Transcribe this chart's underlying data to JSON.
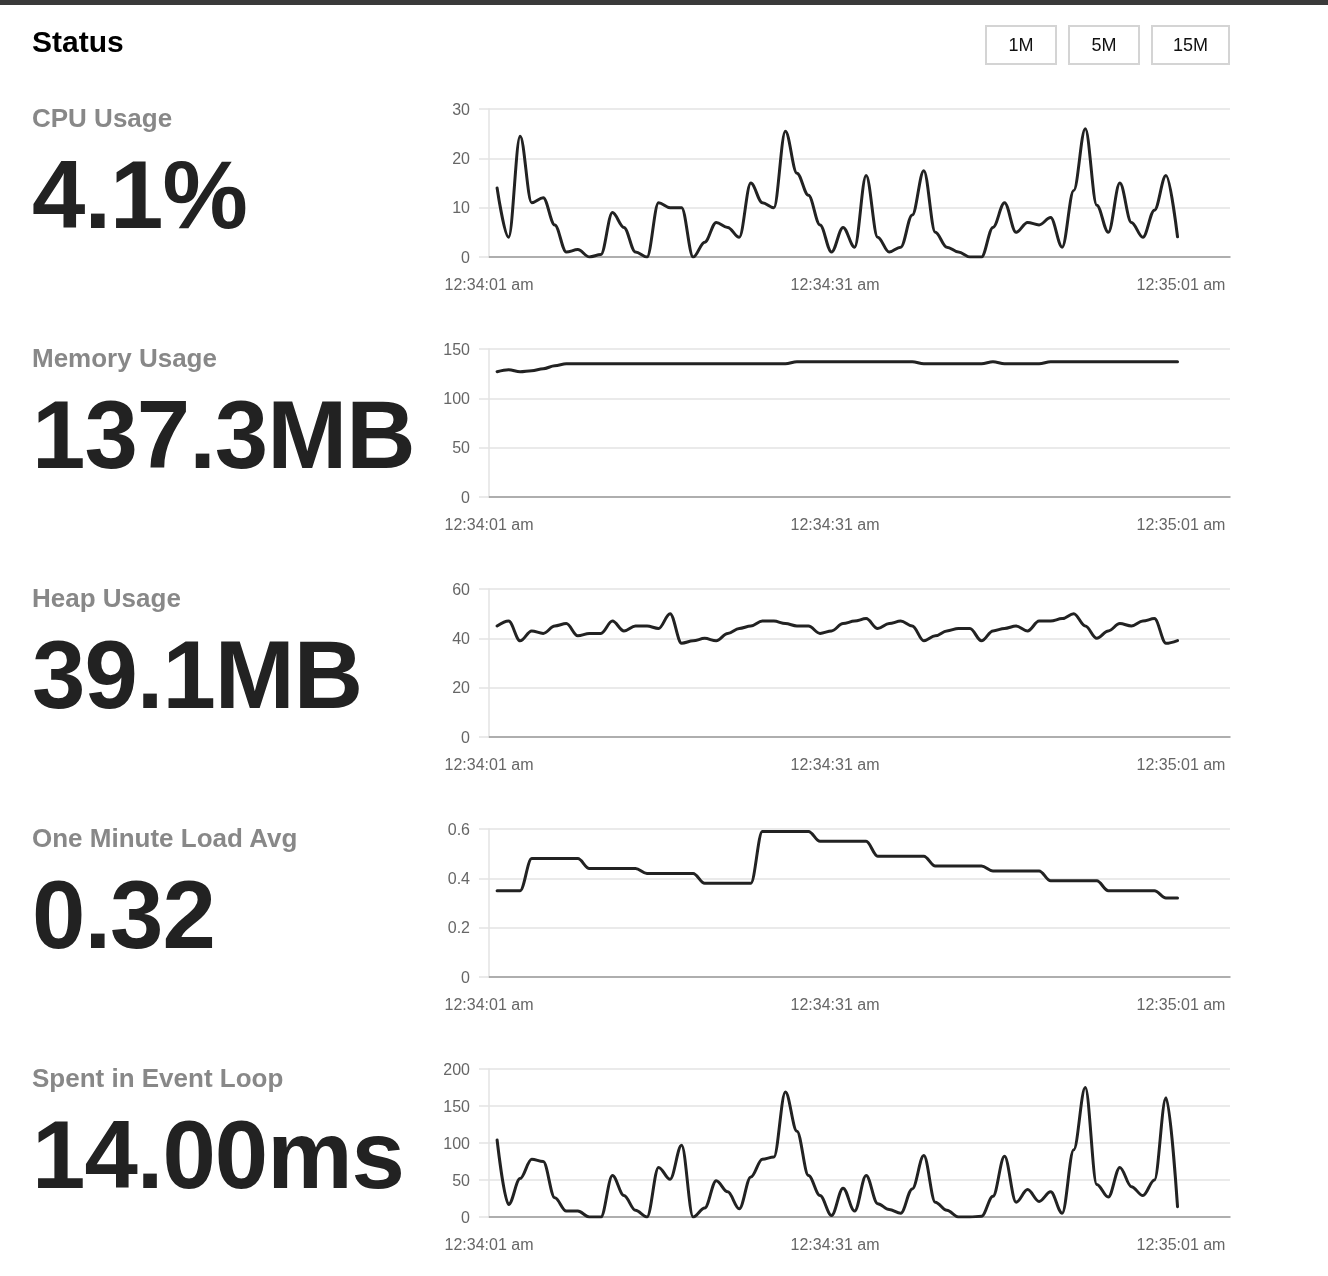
{
  "chart_data": [
    {
      "type": "other",
      "title": "Status",
      "annotations": [
        "1M",
        "5M",
        "15M"
      ]
    },
    {
      "type": "other",
      "title": "CPU Usage",
      "subtitle": "4.1%"
    },
    {
      "type": "line",
      "color": "#222222",
      "marker": "none",
      "grid": "y",
      "x": [
        0.567139,
        0.567417,
        0.567694,
        0.567972,
        0.56825,
        0.568528,
        0.568806,
        0.569083,
        0.569361,
        0.569639,
        0.569917,
        0.570194,
        0.570472,
        0.57075,
        0.571028,
        0.571306,
        0.571583,
        0.571861,
        0.572139,
        0.572417,
        0.572694,
        0.572972,
        0.57325,
        0.573528,
        0.573806,
        0.574083,
        0.574361,
        0.574639,
        0.574917,
        0.575194,
        0.575472,
        0.57575,
        0.576028,
        0.576306,
        0.576583,
        0.576861,
        0.577139,
        0.577417,
        0.577694,
        0.577972,
        0.57825,
        0.578528,
        0.578806,
        0.579083,
        0.579361,
        0.579639,
        0.579917,
        0.580194,
        0.580472,
        0.58075,
        0.581028,
        0.581306,
        0.581583,
        0.581861,
        0.582139,
        0.582417,
        0.582694,
        0.582972,
        0.58325,
        0.583528
      ],
      "values": [
        14,
        4,
        24.5,
        11,
        12,
        6.5,
        1,
        1.5,
        0,
        0.5,
        9,
        6,
        1,
        0,
        11,
        10,
        10,
        0,
        3,
        7,
        6,
        4,
        15,
        11,
        10,
        25.5,
        17,
        12.5,
        6.5,
        1,
        6,
        2,
        16.5,
        4,
        1,
        2,
        8.5,
        17.5,
        5,
        2,
        1,
        0,
        0,
        6,
        11,
        5,
        7,
        6.5,
        8,
        2,
        13.5,
        26,
        10.5,
        5,
        15,
        7,
        4,
        9.5,
        16.5,
        4.1
      ],
      "xlim": [
        0.566944,
        0.584792
      ],
      "xticks": [
        {
          "value": 0.566944,
          "label": "12:34:01 am"
        },
        {
          "value": 0.575278,
          "label": "12:34:31 am"
        },
        {
          "value": 0.583611,
          "label": "12:35:01 am"
        }
      ],
      "ylim": [
        0,
        30
      ],
      "yticks": [
        0,
        10,
        20,
        30
      ]
    },
    {
      "type": "other",
      "title": "Memory Usage",
      "subtitle": "137.3MB"
    },
    {
      "type": "line",
      "color": "#222222",
      "marker": "none",
      "grid": "y",
      "x": [
        0.567139,
        0.567417,
        0.567694,
        0.567972,
        0.56825,
        0.568528,
        0.568806,
        0.569083,
        0.569361,
        0.569639,
        0.569917,
        0.570194,
        0.570472,
        0.57075,
        0.571028,
        0.571306,
        0.571583,
        0.571861,
        0.572139,
        0.572417,
        0.572694,
        0.572972,
        0.57325,
        0.573528,
        0.573806,
        0.574083,
        0.574361,
        0.574639,
        0.574917,
        0.575194,
        0.575472,
        0.57575,
        0.576028,
        0.576306,
        0.576583,
        0.576861,
        0.577139,
        0.577417,
        0.577694,
        0.577972,
        0.57825,
        0.578528,
        0.578806,
        0.579083,
        0.579361,
        0.579639,
        0.579917,
        0.580194,
        0.580472,
        0.58075,
        0.581028,
        0.581306,
        0.581583,
        0.581861,
        0.582139,
        0.582417,
        0.582694,
        0.582972,
        0.58325,
        0.583528
      ],
      "values": [
        127,
        129,
        127,
        128,
        130,
        133,
        135,
        135,
        135,
        135,
        135,
        135,
        135,
        135,
        135,
        135,
        135,
        135,
        135,
        135,
        135,
        135,
        135,
        135,
        135,
        135,
        137,
        137,
        137,
        137,
        137,
        137,
        137,
        137,
        137,
        137,
        137,
        135,
        135,
        135,
        135,
        135,
        135,
        137,
        135,
        135,
        135,
        135,
        137,
        137,
        137,
        137,
        137,
        137,
        137,
        137,
        137,
        137,
        137,
        137
      ],
      "xlim": [
        0.566944,
        0.584792
      ],
      "xticks": [
        {
          "value": 0.566944,
          "label": "12:34:01 am"
        },
        {
          "value": 0.575278,
          "label": "12:34:31 am"
        },
        {
          "value": 0.583611,
          "label": "12:35:01 am"
        }
      ],
      "ylim": [
        0,
        150
      ],
      "yticks": [
        0,
        50,
        100,
        150
      ]
    },
    {
      "type": "other",
      "title": "Heap Usage",
      "subtitle": "39.1MB"
    },
    {
      "type": "line",
      "color": "#222222",
      "marker": "none",
      "grid": "y",
      "x": [
        0.567139,
        0.567417,
        0.567694,
        0.567972,
        0.56825,
        0.568528,
        0.568806,
        0.569083,
        0.569361,
        0.569639,
        0.569917,
        0.570194,
        0.570472,
        0.57075,
        0.571028,
        0.571306,
        0.571583,
        0.571861,
        0.572139,
        0.572417,
        0.572694,
        0.572972,
        0.57325,
        0.573528,
        0.573806,
        0.574083,
        0.574361,
        0.574639,
        0.574917,
        0.575194,
        0.575472,
        0.57575,
        0.576028,
        0.576306,
        0.576583,
        0.576861,
        0.577139,
        0.577417,
        0.577694,
        0.577972,
        0.57825,
        0.578528,
        0.578806,
        0.579083,
        0.579361,
        0.579639,
        0.579917,
        0.580194,
        0.580472,
        0.58075,
        0.581028,
        0.581306,
        0.581583,
        0.581861,
        0.582139,
        0.582417,
        0.582694,
        0.582972,
        0.58325,
        0.583528
      ],
      "values": [
        45,
        47,
        39,
        43,
        42,
        45,
        46,
        41,
        42,
        42,
        47,
        43,
        45,
        45,
        44,
        50,
        38,
        39,
        40,
        39,
        42,
        44,
        45,
        47,
        47,
        46,
        45,
        45,
        42,
        43,
        46,
        47,
        48,
        44,
        46,
        47,
        45,
        39,
        41,
        43,
        44,
        44,
        39,
        43,
        44,
        45,
        43,
        47,
        47,
        48,
        50,
        45,
        40,
        43,
        46,
        45,
        47,
        48,
        38,
        39.1
      ],
      "xlim": [
        0.566944,
        0.584792
      ],
      "xticks": [
        {
          "value": 0.566944,
          "label": "12:34:01 am"
        },
        {
          "value": 0.575278,
          "label": "12:34:31 am"
        },
        {
          "value": 0.583611,
          "label": "12:35:01 am"
        }
      ],
      "ylim": [
        0,
        60
      ],
      "yticks": [
        0,
        20,
        40,
        60
      ]
    },
    {
      "type": "other",
      "title": "One Minute Load Avg",
      "subtitle": "0.32"
    },
    {
      "type": "line",
      "color": "#222222",
      "marker": "none",
      "grid": "y",
      "x": [
        0.567139,
        0.567417,
        0.567694,
        0.567972,
        0.56825,
        0.568528,
        0.568806,
        0.569083,
        0.569361,
        0.569639,
        0.569917,
        0.570194,
        0.570472,
        0.57075,
        0.571028,
        0.571306,
        0.571583,
        0.571861,
        0.572139,
        0.572417,
        0.572694,
        0.572972,
        0.57325,
        0.573528,
        0.573806,
        0.574083,
        0.574361,
        0.574639,
        0.574917,
        0.575194,
        0.575472,
        0.57575,
        0.576028,
        0.576306,
        0.576583,
        0.576861,
        0.577139,
        0.577417,
        0.577694,
        0.577972,
        0.57825,
        0.578528,
        0.578806,
        0.579083,
        0.579361,
        0.579639,
        0.579917,
        0.580194,
        0.580472,
        0.58075,
        0.581028,
        0.581306,
        0.581583,
        0.581861,
        0.582139,
        0.582417,
        0.582694,
        0.582972,
        0.58325,
        0.583528
      ],
      "values": [
        0.35,
        0.35,
        0.35,
        0.48,
        0.48,
        0.48,
        0.48,
        0.48,
        0.44,
        0.44,
        0.44,
        0.44,
        0.44,
        0.42,
        0.42,
        0.42,
        0.42,
        0.42,
        0.38,
        0.38,
        0.38,
        0.38,
        0.38,
        0.59,
        0.59,
        0.59,
        0.59,
        0.59,
        0.55,
        0.55,
        0.55,
        0.55,
        0.55,
        0.49,
        0.49,
        0.49,
        0.49,
        0.49,
        0.45,
        0.45,
        0.45,
        0.45,
        0.45,
        0.43,
        0.43,
        0.43,
        0.43,
        0.43,
        0.39,
        0.39,
        0.39,
        0.39,
        0.39,
        0.35,
        0.35,
        0.35,
        0.35,
        0.35,
        0.32,
        0.32
      ],
      "xlim": [
        0.566944,
        0.584792
      ],
      "xticks": [
        {
          "value": 0.566944,
          "label": "12:34:01 am"
        },
        {
          "value": 0.575278,
          "label": "12:34:31 am"
        },
        {
          "value": 0.583611,
          "label": "12:35:01 am"
        }
      ],
      "ylim": [
        0,
        0.6
      ],
      "yticks": [
        0,
        0.2,
        0.4,
        0.6
      ]
    },
    {
      "type": "other",
      "title": "Spent in Event Loop",
      "subtitle": "14.00ms"
    },
    {
      "type": "line",
      "color": "#222222",
      "marker": "none",
      "grid": "y",
      "x": [
        0.567139,
        0.567417,
        0.567694,
        0.567972,
        0.56825,
        0.568528,
        0.568806,
        0.569083,
        0.569361,
        0.569639,
        0.569917,
        0.570194,
        0.570472,
        0.57075,
        0.571028,
        0.571306,
        0.571583,
        0.571861,
        0.572139,
        0.572417,
        0.572694,
        0.572972,
        0.57325,
        0.573528,
        0.573806,
        0.574083,
        0.574361,
        0.574639,
        0.574917,
        0.575194,
        0.575472,
        0.57575,
        0.576028,
        0.576306,
        0.576583,
        0.576861,
        0.577139,
        0.577417,
        0.577694,
        0.577972,
        0.57825,
        0.578528,
        0.578806,
        0.579083,
        0.579361,
        0.579639,
        0.579917,
        0.580194,
        0.580472,
        0.58075,
        0.581028,
        0.581306,
        0.581583,
        0.581861,
        0.582139,
        0.582417,
        0.582694,
        0.582972,
        0.58325,
        0.583528
      ],
      "values": [
        104,
        17,
        52,
        78,
        75,
        26,
        8,
        8,
        0,
        0,
        56,
        29,
        9,
        0,
        67,
        51,
        97,
        0,
        12,
        49,
        34,
        11,
        54,
        78,
        81,
        169,
        116,
        56,
        29,
        2,
        39,
        8,
        56,
        18,
        10,
        5,
        38,
        83,
        20,
        9,
        0,
        0,
        1,
        28,
        82,
        20,
        37,
        21,
        34,
        5,
        91,
        175,
        44,
        27,
        67,
        41,
        29,
        50,
        161,
        14
      ],
      "xlim": [
        0.566944,
        0.584792
      ],
      "xticks": [
        {
          "value": 0.566944,
          "label": "12:34:01 am"
        },
        {
          "value": 0.575278,
          "label": "12:34:31 am"
        },
        {
          "value": 0.583611,
          "label": "12:35:01 am"
        }
      ],
      "ylim": [
        0,
        200
      ],
      "yticks": [
        0,
        50,
        100,
        150,
        200
      ]
    }
  ]
}
